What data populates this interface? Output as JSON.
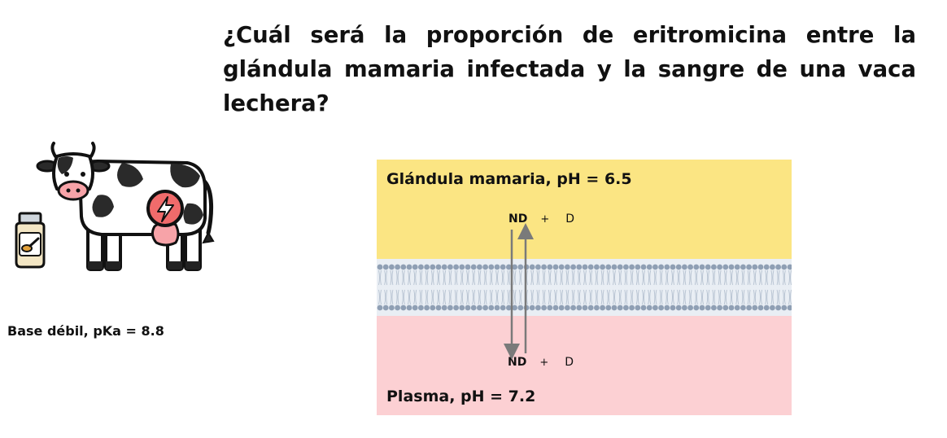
{
  "question": "¿Cuál será la proporción de eritromicina entre la glándula mamaria infectada y la sangre de una vaca lechera?",
  "drug_label": "Base débil, pKa = 8.8",
  "illustration": {
    "cow_icon": "cow-icon",
    "jar_icon": "medicine-jar-icon",
    "udder_badge_icon": "lightning-badge-icon"
  },
  "diagram": {
    "top_compartment": {
      "label": "Glándula mamaria, pH = 6.5",
      "color": "#fbe583",
      "species": {
        "nd": "ND",
        "plus": "+",
        "d": "D"
      }
    },
    "bottom_compartment": {
      "label": "Plasma, pH = 7.2",
      "color": "#fcd0d3",
      "species": {
        "nd": "ND",
        "plus": "+",
        "d": "D"
      }
    },
    "membrane_color": "#8f9fb4",
    "arrows": [
      "down",
      "up"
    ]
  }
}
